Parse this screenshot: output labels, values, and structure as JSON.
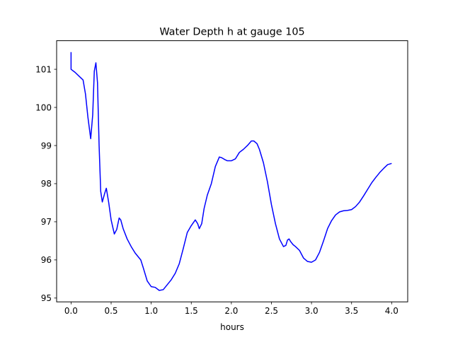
{
  "chart_data": {
    "type": "line",
    "title": "Water Depth h at gauge 105",
    "xlabel": "hours",
    "ylabel": "",
    "xlim": [
      -0.18,
      4.2
    ],
    "ylim": [
      94.9,
      101.75
    ],
    "xticks": [
      0.0,
      0.5,
      1.0,
      1.5,
      2.0,
      2.5,
      3.0,
      3.5,
      4.0
    ],
    "xtick_labels": [
      "0.0",
      "0.5",
      "1.0",
      "1.5",
      "2.0",
      "2.5",
      "3.0",
      "3.5",
      "4.0"
    ],
    "yticks": [
      95,
      96,
      97,
      98,
      99,
      100,
      101
    ],
    "ytick_labels": [
      "95",
      "96",
      "97",
      "98",
      "99",
      "100",
      "101"
    ],
    "grid": false,
    "series": [
      {
        "color": "#0000ff",
        "x": [
          0.0,
          0.0,
          0.0,
          0.05,
          0.1,
          0.15,
          0.18,
          0.21,
          0.245,
          0.27,
          0.29,
          0.31,
          0.33,
          0.35,
          0.37,
          0.39,
          0.42,
          0.44,
          0.47,
          0.5,
          0.54,
          0.57,
          0.6,
          0.62,
          0.65,
          0.7,
          0.75,
          0.8,
          0.87,
          0.9,
          0.95,
          1.0,
          1.05,
          1.1,
          1.15,
          1.2,
          1.25,
          1.3,
          1.35,
          1.4,
          1.45,
          1.5,
          1.55,
          1.58,
          1.6,
          1.63,
          1.66,
          1.7,
          1.75,
          1.8,
          1.85,
          1.88,
          1.92,
          1.95,
          2.0,
          2.05,
          2.1,
          2.15,
          2.2,
          2.25,
          2.28,
          2.32,
          2.35,
          2.4,
          2.45,
          2.5,
          2.55,
          2.6,
          2.65,
          2.68,
          2.7,
          2.72,
          2.74,
          2.77,
          2.8,
          2.85,
          2.9,
          2.95,
          3.0,
          3.05,
          3.1,
          3.15,
          3.2,
          3.25,
          3.3,
          3.35,
          3.4,
          3.45,
          3.5,
          3.55,
          3.6,
          3.65,
          3.7,
          3.75,
          3.8,
          3.85,
          3.9,
          3.95,
          4.0
        ],
        "y": [
          101.45,
          101.0,
          101.0,
          100.92,
          100.82,
          100.72,
          100.35,
          99.75,
          99.18,
          99.8,
          100.95,
          101.17,
          100.65,
          99.0,
          97.8,
          97.52,
          97.75,
          97.88,
          97.5,
          97.05,
          96.68,
          96.8,
          97.1,
          97.05,
          96.82,
          96.55,
          96.35,
          96.18,
          96.0,
          95.8,
          95.45,
          95.3,
          95.28,
          95.2,
          95.22,
          95.35,
          95.48,
          95.65,
          95.9,
          96.3,
          96.72,
          96.9,
          97.05,
          96.95,
          96.82,
          96.95,
          97.35,
          97.7,
          98.0,
          98.45,
          98.7,
          98.68,
          98.63,
          98.6,
          98.6,
          98.65,
          98.82,
          98.9,
          99.0,
          99.12,
          99.12,
          99.05,
          98.9,
          98.55,
          98.05,
          97.45,
          96.95,
          96.55,
          96.35,
          96.38,
          96.52,
          96.55,
          96.48,
          96.4,
          96.35,
          96.25,
          96.05,
          95.96,
          95.94,
          96.0,
          96.2,
          96.5,
          96.82,
          97.03,
          97.18,
          97.26,
          97.29,
          97.3,
          97.32,
          97.4,
          97.52,
          97.68,
          97.85,
          98.02,
          98.16,
          98.29,
          98.4,
          98.5,
          98.53
        ]
      }
    ]
  }
}
